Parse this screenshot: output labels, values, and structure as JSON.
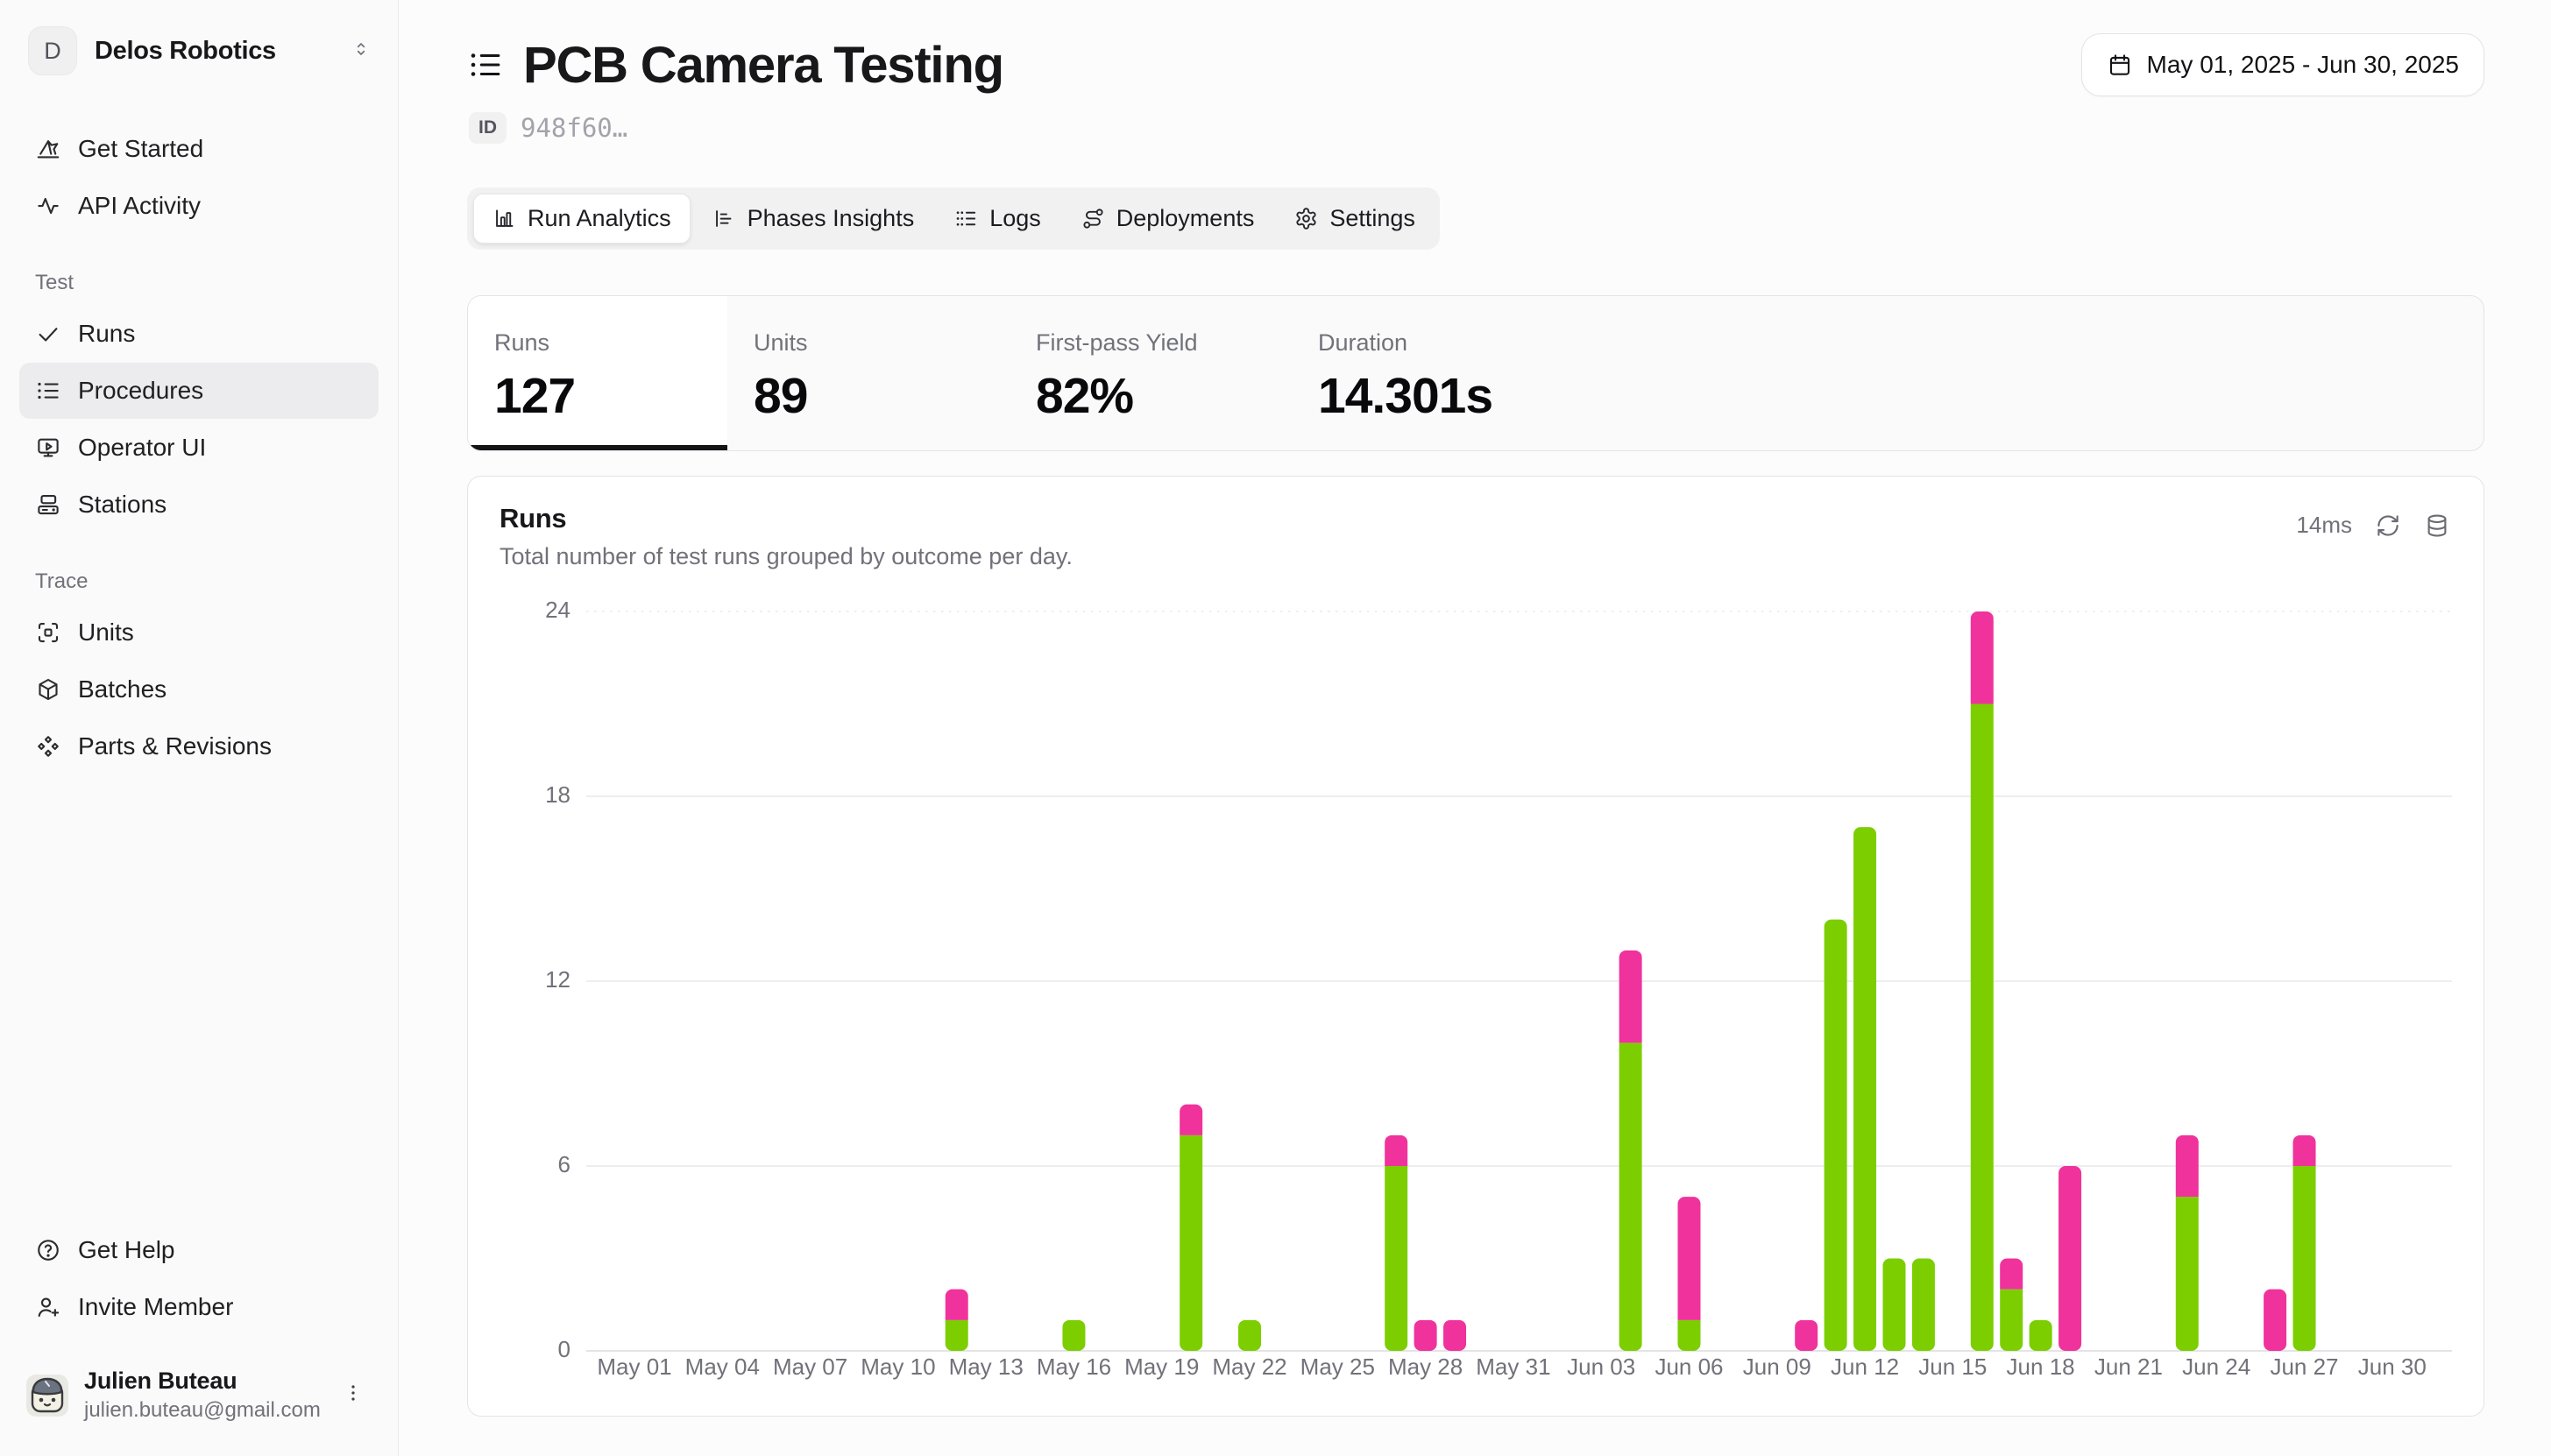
{
  "sidebar": {
    "workspace": {
      "initial": "D",
      "name": "Delos Robotics"
    },
    "nav_top": [
      {
        "icon": "origami",
        "label": "Get Started"
      },
      {
        "icon": "activity",
        "label": "API Activity"
      }
    ],
    "sections": [
      {
        "title": "Test",
        "items": [
          {
            "icon": "check",
            "label": "Runs",
            "active": false
          },
          {
            "icon": "list",
            "label": "Procedures",
            "active": true
          },
          {
            "icon": "monitor-play",
            "label": "Operator UI",
            "active": false
          },
          {
            "icon": "server",
            "label": "Stations",
            "active": false
          }
        ]
      },
      {
        "title": "Trace",
        "items": [
          {
            "icon": "scan",
            "label": "Units",
            "active": false
          },
          {
            "icon": "package",
            "label": "Batches",
            "active": false
          },
          {
            "icon": "component",
            "label": "Parts & Revisions",
            "active": false
          }
        ]
      }
    ],
    "footer_items": [
      {
        "icon": "help-circle",
        "label": "Get Help"
      },
      {
        "icon": "user-plus",
        "label": "Invite Member"
      }
    ],
    "user": {
      "name": "Julien Buteau",
      "email": "julien.buteau@gmail.com"
    }
  },
  "header": {
    "title": "PCB Camera Testing",
    "id_label": "ID",
    "id_value": "948f60…",
    "date_range": "May 01, 2025 - Jun 30, 2025"
  },
  "tabs": {
    "items": [
      {
        "icon": "chart-column",
        "label": "Run Analytics",
        "active": true
      },
      {
        "icon": "chart-bar",
        "label": "Phases Insights",
        "active": false
      },
      {
        "icon": "logs",
        "label": "Logs",
        "active": false
      },
      {
        "icon": "route",
        "label": "Deployments",
        "active": false
      },
      {
        "icon": "settings",
        "label": "Settings",
        "active": false
      }
    ]
  },
  "stats": {
    "items": [
      {
        "label": "Runs",
        "value": "127",
        "active": true
      },
      {
        "label": "Units",
        "value": "89",
        "active": false
      },
      {
        "label": "First-pass Yield",
        "value": "82%",
        "active": false
      },
      {
        "label": "Duration",
        "value": "14.301s",
        "active": false
      }
    ]
  },
  "chart_card": {
    "title": "Runs",
    "subtitle": "Total number of test runs grouped by outcome per day.",
    "latency": "14ms"
  },
  "chart_data": {
    "type": "bar",
    "stacked": true,
    "title": "Runs",
    "xlabel": "",
    "ylabel": "",
    "ylim": [
      0,
      24
    ],
    "y_ticks": [
      0,
      6,
      12,
      18,
      24
    ],
    "x_range": [
      "May 01",
      "Jun 30"
    ],
    "x_tick_labels": [
      "May 01",
      "May 04",
      "May 07",
      "May 10",
      "May 13",
      "May 16",
      "May 19",
      "May 22",
      "May 25",
      "May 28",
      "May 31",
      "Jun 03",
      "Jun 06",
      "Jun 09",
      "Jun 12",
      "Jun 15",
      "Jun 18",
      "Jun 21",
      "Jun 24",
      "Jun 27",
      "Jun 30"
    ],
    "x_tick_day_step": 3,
    "grid": true,
    "legend": "none",
    "series_colors": {
      "pass": "#7cce00",
      "fail": "#f0329c"
    },
    "bars": [
      {
        "date": "May 12",
        "day": 11,
        "pass": 1,
        "fail": 1
      },
      {
        "date": "May 16",
        "day": 15,
        "pass": 1,
        "fail": 0
      },
      {
        "date": "May 20",
        "day": 19,
        "pass": 7,
        "fail": 1
      },
      {
        "date": "May 22",
        "day": 21,
        "pass": 1,
        "fail": 0
      },
      {
        "date": "May 27",
        "day": 26,
        "pass": 6,
        "fail": 1
      },
      {
        "date": "May 28",
        "day": 27,
        "pass": 0,
        "fail": 1
      },
      {
        "date": "May 29",
        "day": 28,
        "pass": 0,
        "fail": 1
      },
      {
        "date": "Jun 04",
        "day": 34,
        "pass": 10,
        "fail": 3
      },
      {
        "date": "Jun 06",
        "day": 36,
        "pass": 1,
        "fail": 4
      },
      {
        "date": "Jun 10",
        "day": 40,
        "pass": 0,
        "fail": 1
      },
      {
        "date": "Jun 11",
        "day": 41,
        "pass": 14,
        "fail": 0
      },
      {
        "date": "Jun 12",
        "day": 42,
        "pass": 17,
        "fail": 0
      },
      {
        "date": "Jun 13",
        "day": 43,
        "pass": 3,
        "fail": 0
      },
      {
        "date": "Jun 14",
        "day": 44,
        "pass": 3,
        "fail": 0
      },
      {
        "date": "Jun 16",
        "day": 46,
        "pass": 21,
        "fail": 3
      },
      {
        "date": "Jun 17",
        "day": 47,
        "pass": 2,
        "fail": 1
      },
      {
        "date": "Jun 18",
        "day": 48,
        "pass": 1,
        "fail": 0
      },
      {
        "date": "Jun 19",
        "day": 49,
        "pass": 0,
        "fail": 6
      },
      {
        "date": "Jun 23",
        "day": 53,
        "pass": 5,
        "fail": 2
      },
      {
        "date": "Jun 26",
        "day": 56,
        "pass": 0,
        "fail": 2
      },
      {
        "date": "Jun 27",
        "day": 57,
        "pass": 6,
        "fail": 1
      }
    ],
    "total_runs": 127
  }
}
